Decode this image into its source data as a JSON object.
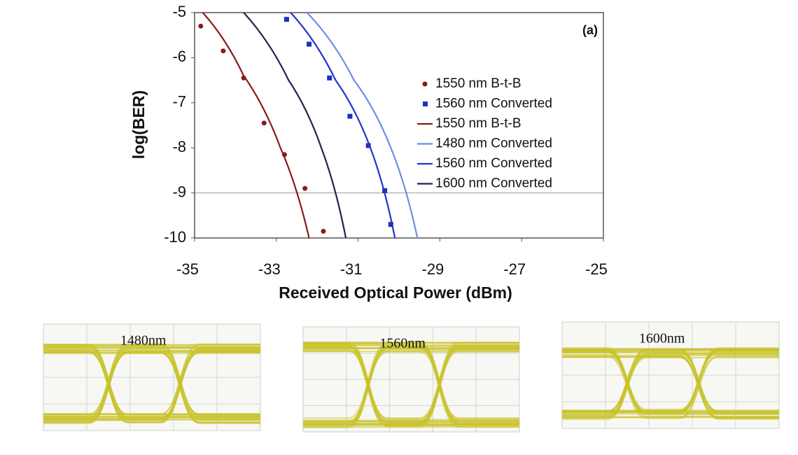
{
  "chart_data": {
    "type": "line",
    "annotation": "(a)",
    "x_label": "Received Optical Power (dBm)",
    "y_label": "log(BER)",
    "xlim": [
      -35,
      -25
    ],
    "xticks": [
      -35,
      -33,
      -31,
      -29,
      -27,
      -25
    ],
    "ylim": [
      -10,
      -5
    ],
    "yticks": [
      -5,
      -6,
      -7,
      -8,
      -9,
      -10
    ],
    "grid_lines": [
      -9
    ],
    "series": [
      {
        "name": "1550 nm B-t-B",
        "style": "markers",
        "marker": "circle",
        "color": "#8b1a1a",
        "x": [
          -34.85,
          -34.3,
          -33.8,
          -33.3,
          -32.8,
          -32.3,
          -31.85
        ],
        "values": [
          -5.3,
          -5.85,
          -6.45,
          -7.45,
          -8.15,
          -8.9,
          -9.85
        ]
      },
      {
        "name": "1560 nm Converted",
        "style": "markers",
        "marker": "square",
        "color": "#1f2fc0",
        "x": [
          -32.75,
          -32.2,
          -31.7,
          -31.2,
          -30.75,
          -30.35,
          -30.2
        ],
        "values": [
          -5.15,
          -5.7,
          -6.45,
          -7.3,
          -7.95,
          -8.95,
          -9.7
        ]
      },
      {
        "name": "1550 nm B-t-B",
        "style": "line",
        "color": "#8b1a1a",
        "x": [
          -34.8,
          -33.8,
          -32.9,
          -32.2
        ],
        "values": [
          -5,
          -6.4,
          -8,
          -10
        ]
      },
      {
        "name": "1480 nm Converted",
        "style": "line",
        "color": "#6b8ee8",
        "x": [
          -32.25,
          -31.1,
          -30.2,
          -29.55
        ],
        "values": [
          -5,
          -6.5,
          -8,
          -10
        ]
      },
      {
        "name": "1560 nm Converted",
        "style": "line",
        "color": "#2233cc",
        "x": [
          -32.65,
          -31.55,
          -30.7,
          -30.1
        ],
        "values": [
          -5,
          -6.5,
          -8,
          -10
        ]
      },
      {
        "name": "1600 nm Converted",
        "style": "line",
        "color": "#1a2450",
        "x": [
          -33.8,
          -32.7,
          -31.9,
          -31.3
        ],
        "values": [
          -5,
          -6.5,
          -8,
          -10
        ]
      }
    ]
  },
  "eye_diagrams": [
    {
      "label": "1480nm"
    },
    {
      "label": "1560nm"
    },
    {
      "label": "1600nm"
    }
  ]
}
